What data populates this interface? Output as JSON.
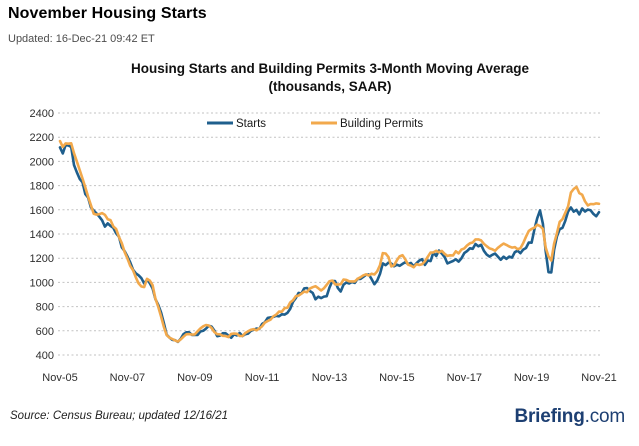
{
  "header": {
    "title": "November Housing Starts",
    "updated": "Updated: 16-Dec-21 09:42 ET"
  },
  "chart_data": {
    "type": "line",
    "title": "Housing Starts and Building Permits 3-Month Moving Average",
    "subtitle": "(thousands, SAAR)",
    "x_frequency": "monthly",
    "x_start": "Nov-2005",
    "x_end": "Nov-2021",
    "x_tick_labels": [
      "Nov-05",
      "Nov-07",
      "Nov-09",
      "Nov-11",
      "Nov-13",
      "Nov-15",
      "Nov-17",
      "Nov-19",
      "Nov-21"
    ],
    "x_tick_month_indices": [
      0,
      24,
      48,
      72,
      96,
      120,
      144,
      168,
      192
    ],
    "ylim": [
      400,
      2400
    ],
    "y_tick_step": 200,
    "grid": "horizontal-dotted",
    "grid_color": "#c2c2c2",
    "legend_position": "top-inside",
    "series": [
      {
        "name": "Starts",
        "color": "#1f5f8d",
        "values": [
          2116,
          2066,
          2135,
          2131,
          2120,
          1970,
          1911,
          1855,
          1827,
          1730,
          1702,
          1620,
          1594,
          1570,
          1543,
          1513,
          1461,
          1488,
          1467,
          1451,
          1406,
          1377,
          1289,
          1259,
          1215,
          1166,
          1106,
          1075,
          1059,
          1035,
          991,
          1023,
          993,
          950,
          862,
          814,
          750,
          663,
          567,
          544,
          526,
          522,
          508,
          534,
          573,
          588,
          588,
          566,
          567,
          565,
          594,
          600,
          618,
          642,
          635,
          602,
          555,
          560,
          580,
          579,
          561,
          542,
          571,
          562,
          582,
          557,
          572,
          577,
          600,
          608,
          619,
          615,
          656,
          671,
          707,
          711,
          715,
          724,
          720,
          736,
          734,
          748,
          781,
          839,
          870,
          913,
          908,
          950,
          954,
          930,
          913,
          860,
          882,
          870,
          883,
          886,
          958,
          1011,
          1011,
          953,
          925,
          980,
          999,
          991,
          1003,
          996,
          1030,
          1028,
          1045,
          1063,
          1066,
          1027,
          985,
          1015,
          1070,
          1157,
          1142,
          1164,
          1156,
          1133,
          1146,
          1137,
          1153,
          1167,
          1151,
          1160,
          1132,
          1159,
          1180,
          1192,
          1145,
          1181,
          1176,
          1248,
          1218,
          1264,
          1238,
          1210,
          1157,
          1167,
          1177,
          1191,
          1172,
          1198,
          1242,
          1259,
          1282,
          1278,
          1317,
          1298,
          1311,
          1261,
          1230,
          1213,
          1228,
          1238,
          1213,
          1187,
          1212,
          1194,
          1213,
          1205,
          1250,
          1262,
          1241,
          1271,
          1284,
          1330,
          1328,
          1437,
          1530,
          1595,
          1484,
          1258,
          1084,
          1083,
          1269,
          1379,
          1440,
          1451,
          1509,
          1586,
          1619,
          1584,
          1599,
          1562,
          1611,
          1586,
          1602,
          1596,
          1566,
          1546,
          1580
        ]
      },
      {
        "name": "Building Permits",
        "color": "#f2a94c",
        "values": [
          2168,
          2120,
          2149,
          2146,
          2150,
          2068,
          2001,
          1929,
          1859,
          1786,
          1709,
          1639,
          1568,
          1560,
          1564,
          1573,
          1559,
          1522,
          1515,
          1463,
          1441,
          1375,
          1324,
          1251,
          1198,
          1137,
          1101,
          1042,
          992,
          966,
          961,
          1030,
          1015,
          977,
          866,
          797,
          717,
          631,
          564,
          543,
          532,
          521,
          511,
          529,
          551,
          571,
          573,
          569,
          570,
          596,
          620,
          637,
          648,
          644,
          623,
          589,
          572,
          571,
          559,
          557,
          548,
          574,
          578,
          575,
          557,
          557,
          582,
          596,
          608,
          613,
          604,
          619,
          638,
          668,
          681,
          692,
          720,
          734,
          759,
          758,
          787,
          791,
          834,
          853,
          886,
          891,
          907,
          924,
          919,
          949,
          960,
          969,
          952,
          933,
          951,
          980,
          1010,
          1016,
          984,
          982,
          985,
          1023,
          1021,
          1009,
          1008,
          1008,
          1030,
          1042,
          1058,
          1067,
          1057,
          1072,
          1065,
          1092,
          1143,
          1242,
          1239,
          1209,
          1132,
          1142,
          1183,
          1216,
          1225,
          1190,
          1147,
          1139,
          1125,
          1151,
          1144,
          1150,
          1174,
          1212,
          1247,
          1248,
          1261,
          1249,
          1260,
          1236,
          1219,
          1224,
          1222,
          1257,
          1240,
          1271,
          1281,
          1306,
          1323,
          1330,
          1355,
          1355,
          1347,
          1319,
          1299,
          1281,
          1274,
          1261,
          1286,
          1304,
          1321,
          1310,
          1297,
          1288,
          1292,
          1274,
          1283,
          1325,
          1378,
          1426,
          1442,
          1452,
          1477,
          1465,
          1443,
          1287,
          1214,
          1181,
          1320,
          1406,
          1501,
          1522,
          1575,
          1628,
          1742,
          1772,
          1789,
          1738,
          1724,
          1670,
          1636,
          1648,
          1646,
          1653,
          1650
        ]
      }
    ]
  },
  "footer": {
    "source": "Source: Census Bureau; updated 12/16/21",
    "logo_bold": "Briefing",
    "logo_light": ".com",
    "logo_color": "#1d3f72"
  }
}
